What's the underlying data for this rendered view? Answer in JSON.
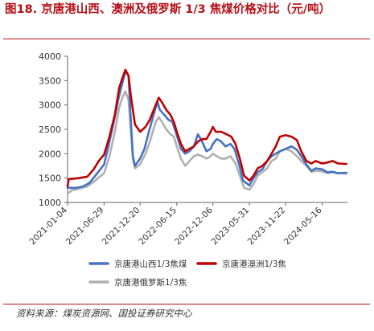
{
  "figure": {
    "title": "图18. 京唐港山西、澳洲及俄罗斯 1/3 焦煤价格对比（元/吨）",
    "source": "资料来源：煤炭资源网、国投证券研究中心"
  },
  "chart_data": {
    "type": "line",
    "xlabel": "",
    "ylabel": "",
    "ylim": [
      1000,
      4000
    ],
    "yticks": [
      1000,
      1500,
      2000,
      2500,
      3000,
      3500,
      4000
    ],
    "x_range": [
      "2021-01-04",
      "2024-09-15"
    ],
    "xticks": [
      "2021-01-04",
      "2021-06-29",
      "2021-12-20",
      "2022-06-15",
      "2022-12-06",
      "2023-05-31",
      "2023-11-22",
      "2024-05-16"
    ],
    "grid": false,
    "legend_position": "bottom",
    "series": [
      {
        "name": "京唐港山西1/3焦煤",
        "color": "#4472c4",
        "points": [
          [
            "2021-01-04",
            1300
          ],
          [
            "2021-02-15",
            1300
          ],
          [
            "2021-03-20",
            1330
          ],
          [
            "2021-04-20",
            1400
          ],
          [
            "2021-05-20",
            1560
          ],
          [
            "2021-06-29",
            1780
          ],
          [
            "2021-07-20",
            2150
          ],
          [
            "2021-08-15",
            2650
          ],
          [
            "2021-09-05",
            3100
          ],
          [
            "2021-09-25",
            3450
          ],
          [
            "2021-10-12",
            3700
          ],
          [
            "2021-10-25",
            3600
          ],
          [
            "2021-11-05",
            2700
          ],
          [
            "2021-11-15",
            1950
          ],
          [
            "2021-11-25",
            1750
          ],
          [
            "2021-12-20",
            1900
          ],
          [
            "2022-01-10",
            2100
          ],
          [
            "2022-01-25",
            2350
          ],
          [
            "2022-02-10",
            2600
          ],
          [
            "2022-03-05",
            2950
          ],
          [
            "2022-03-15",
            3050
          ],
          [
            "2022-03-25",
            2900
          ],
          [
            "2022-04-15",
            2800
          ],
          [
            "2022-05-05",
            2700
          ],
          [
            "2022-05-25",
            2650
          ],
          [
            "2022-06-15",
            2380
          ],
          [
            "2022-07-05",
            2100
          ],
          [
            "2022-07-25",
            2000
          ],
          [
            "2022-08-15",
            2050
          ],
          [
            "2022-09-05",
            2150
          ],
          [
            "2022-09-25",
            2400
          ],
          [
            "2022-10-15",
            2250
          ],
          [
            "2022-11-05",
            2050
          ],
          [
            "2022-11-25",
            2100
          ],
          [
            "2022-12-06",
            2200
          ],
          [
            "2022-12-25",
            2300
          ],
          [
            "2023-01-15",
            2250
          ],
          [
            "2023-02-05",
            2150
          ],
          [
            "2023-03-01",
            2200
          ],
          [
            "2023-03-20",
            2100
          ],
          [
            "2023-04-10",
            1800
          ],
          [
            "2023-04-30",
            1450
          ],
          [
            "2023-05-31",
            1350
          ],
          [
            "2023-06-20",
            1500
          ],
          [
            "2023-07-10",
            1620
          ],
          [
            "2023-08-01",
            1680
          ],
          [
            "2023-08-25",
            1850
          ],
          [
            "2023-09-15",
            1950
          ],
          [
            "2023-10-05",
            2000
          ],
          [
            "2023-10-25",
            2050
          ],
          [
            "2023-11-22",
            2100
          ],
          [
            "2023-12-20",
            2150
          ],
          [
            "2024-01-15",
            2080
          ],
          [
            "2024-02-05",
            1950
          ],
          [
            "2024-03-01",
            1780
          ],
          [
            "2024-03-25",
            1650
          ],
          [
            "2024-04-15",
            1700
          ],
          [
            "2024-05-16",
            1680
          ],
          [
            "2024-06-10",
            1620
          ],
          [
            "2024-07-05",
            1630
          ],
          [
            "2024-08-01",
            1600
          ],
          [
            "2024-09-10",
            1610
          ]
        ]
      },
      {
        "name": "京唐港澳洲1/3焦",
        "color": "#c00000",
        "points": [
          [
            "2021-01-04",
            1330
          ],
          [
            "2021-01-10",
            1480
          ],
          [
            "2021-03-01",
            1500
          ],
          [
            "2021-04-10",
            1530
          ],
          [
            "2021-05-10",
            1680
          ],
          [
            "2021-06-05",
            1860
          ],
          [
            "2021-06-29",
            1980
          ],
          [
            "2021-07-25",
            2350
          ],
          [
            "2021-08-20",
            2800
          ],
          [
            "2021-09-10",
            3350
          ],
          [
            "2021-09-25",
            3550
          ],
          [
            "2021-10-10",
            3720
          ],
          [
            "2021-10-25",
            3600
          ],
          [
            "2021-11-05",
            3200
          ],
          [
            "2021-11-15",
            2900
          ],
          [
            "2021-11-25",
            2600
          ],
          [
            "2021-12-20",
            2450
          ],
          [
            "2022-01-15",
            2550
          ],
          [
            "2022-02-05",
            2700
          ],
          [
            "2022-03-05",
            3000
          ],
          [
            "2022-03-20",
            3150
          ],
          [
            "2022-04-05",
            3050
          ],
          [
            "2022-04-25",
            2900
          ],
          [
            "2022-05-15",
            2800
          ],
          [
            "2022-06-01",
            2650
          ],
          [
            "2022-06-15",
            2450
          ],
          [
            "2022-07-05",
            2200
          ],
          [
            "2022-07-25",
            2050
          ],
          [
            "2022-08-15",
            2100
          ],
          [
            "2022-09-05",
            2150
          ],
          [
            "2022-09-25",
            2250
          ],
          [
            "2022-10-15",
            2300
          ],
          [
            "2022-11-05",
            2300
          ],
          [
            "2022-11-25",
            2450
          ],
          [
            "2022-12-06",
            2550
          ],
          [
            "2022-12-20",
            2450
          ],
          [
            "2023-01-15",
            2450
          ],
          [
            "2023-02-10",
            2400
          ],
          [
            "2023-03-05",
            2350
          ],
          [
            "2023-03-25",
            2200
          ],
          [
            "2023-04-15",
            1900
          ],
          [
            "2023-05-05",
            1550
          ],
          [
            "2023-05-31",
            1450
          ],
          [
            "2023-06-20",
            1550
          ],
          [
            "2023-07-10",
            1700
          ],
          [
            "2023-08-01",
            1750
          ],
          [
            "2023-08-25",
            1850
          ],
          [
            "2023-09-15",
            2000
          ],
          [
            "2023-10-05",
            2150
          ],
          [
            "2023-10-25",
            2350
          ],
          [
            "2023-11-22",
            2380
          ],
          [
            "2023-12-20",
            2350
          ],
          [
            "2024-01-15",
            2280
          ],
          [
            "2024-02-05",
            2050
          ],
          [
            "2024-03-01",
            1850
          ],
          [
            "2024-03-25",
            1800
          ],
          [
            "2024-04-15",
            1850
          ],
          [
            "2024-05-16",
            1800
          ],
          [
            "2024-06-10",
            1820
          ],
          [
            "2024-07-05",
            1850
          ],
          [
            "2024-08-01",
            1800
          ],
          [
            "2024-09-10",
            1790
          ]
        ]
      },
      {
        "name": "京唐港俄罗斯1/3焦",
        "color": "#b0b0b0",
        "points": [
          [
            "2021-01-04",
            1180
          ],
          [
            "2021-01-25",
            1250
          ],
          [
            "2021-03-01",
            1280
          ],
          [
            "2021-04-10",
            1330
          ],
          [
            "2021-05-10",
            1420
          ],
          [
            "2021-06-05",
            1520
          ],
          [
            "2021-06-29",
            1600
          ],
          [
            "2021-07-25",
            1950
          ],
          [
            "2021-08-20",
            2450
          ],
          [
            "2021-09-10",
            2950
          ],
          [
            "2021-09-25",
            3150
          ],
          [
            "2021-10-10",
            3280
          ],
          [
            "2021-10-25",
            3100
          ],
          [
            "2021-11-05",
            2500
          ],
          [
            "2021-11-15",
            1900
          ],
          [
            "2021-11-25",
            1700
          ],
          [
            "2021-12-20",
            1780
          ],
          [
            "2022-01-15",
            2000
          ],
          [
            "2022-02-05",
            2250
          ],
          [
            "2022-03-05",
            2650
          ],
          [
            "2022-03-20",
            2750
          ],
          [
            "2022-04-05",
            2650
          ],
          [
            "2022-04-25",
            2500
          ],
          [
            "2022-05-15",
            2400
          ],
          [
            "2022-06-01",
            2350
          ],
          [
            "2022-06-15",
            2150
          ],
          [
            "2022-07-05",
            1900
          ],
          [
            "2022-07-25",
            1750
          ],
          [
            "2022-08-15",
            1850
          ],
          [
            "2022-09-05",
            1950
          ],
          [
            "2022-09-25",
            1980
          ],
          [
            "2022-10-15",
            1950
          ],
          [
            "2022-11-05",
            1900
          ],
          [
            "2022-11-25",
            1950
          ],
          [
            "2022-12-06",
            2000
          ],
          [
            "2022-12-25",
            1950
          ],
          [
            "2023-01-15",
            1900
          ],
          [
            "2023-02-05",
            1900
          ],
          [
            "2023-03-01",
            1950
          ],
          [
            "2023-03-25",
            1800
          ],
          [
            "2023-04-15",
            1550
          ],
          [
            "2023-05-05",
            1300
          ],
          [
            "2023-05-31",
            1260
          ],
          [
            "2023-06-20",
            1380
          ],
          [
            "2023-07-10",
            1550
          ],
          [
            "2023-08-01",
            1620
          ],
          [
            "2023-08-25",
            1700
          ],
          [
            "2023-09-15",
            1850
          ],
          [
            "2023-10-05",
            1900
          ],
          [
            "2023-10-25",
            2050
          ],
          [
            "2023-11-22",
            2100
          ],
          [
            "2023-12-20",
            2050
          ],
          [
            "2024-01-15",
            1950
          ],
          [
            "2024-02-05",
            1850
          ],
          [
            "2024-03-01",
            1750
          ],
          [
            "2024-03-25",
            1630
          ],
          [
            "2024-04-15",
            1650
          ],
          [
            "2024-05-16",
            1640
          ],
          [
            "2024-06-10",
            1600
          ],
          [
            "2024-07-05",
            1620
          ],
          [
            "2024-08-01",
            1600
          ],
          [
            "2024-09-10",
            1590
          ]
        ]
      }
    ]
  }
}
